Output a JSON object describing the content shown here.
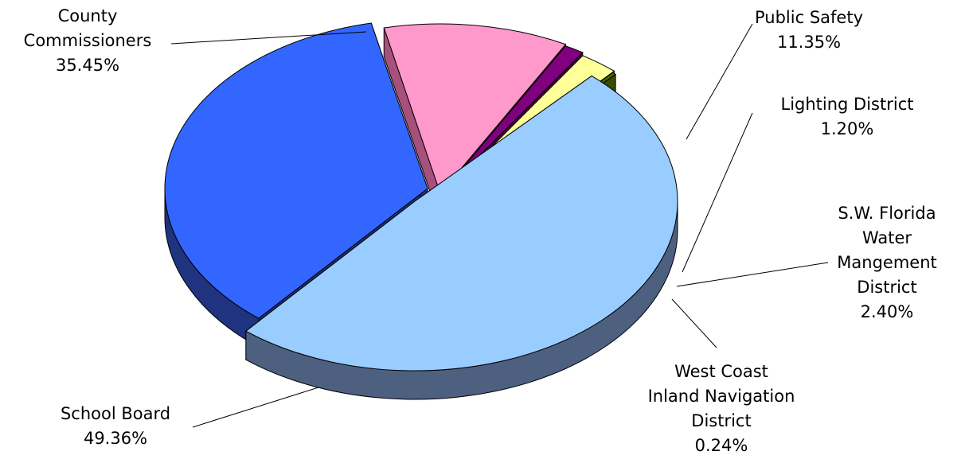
{
  "chart_data": {
    "type": "pie",
    "style": "3d-exploded",
    "title": "",
    "slices": [
      {
        "label_lines": [
          "County",
          "Commissioners"
        ],
        "value_label": "35.45%",
        "value": 35.45,
        "color": "#3366FF",
        "side_color": "#1F3380"
      },
      {
        "label_lines": [
          "Public Safety"
        ],
        "value_label": "11.35%",
        "value": 11.35,
        "color": "#FF99CC",
        "side_color": "#A8507C"
      },
      {
        "label_lines": [
          "Lighting District"
        ],
        "value_label": "1.20%",
        "value": 1.2,
        "color": "#800080",
        "side_color": "#4D004D"
      },
      {
        "label_lines": [
          "S.W. Florida",
          "Water",
          "Mangement",
          "District"
        ],
        "value_label": "2.40%",
        "value": 2.4,
        "color": "#FFFF99",
        "side_color": "#A8A860"
      },
      {
        "label_lines": [
          "West Coast",
          "Inland Navigation",
          "District"
        ],
        "value_label": "0.24%",
        "value": 0.24,
        "color": "#4D6600",
        "side_color": "#3A4D00"
      },
      {
        "label_lines": [
          "School Board"
        ],
        "value_label": "49.36%",
        "value": 49.36,
        "color": "#99CCFF",
        "side_color": "#4D6080"
      }
    ]
  }
}
